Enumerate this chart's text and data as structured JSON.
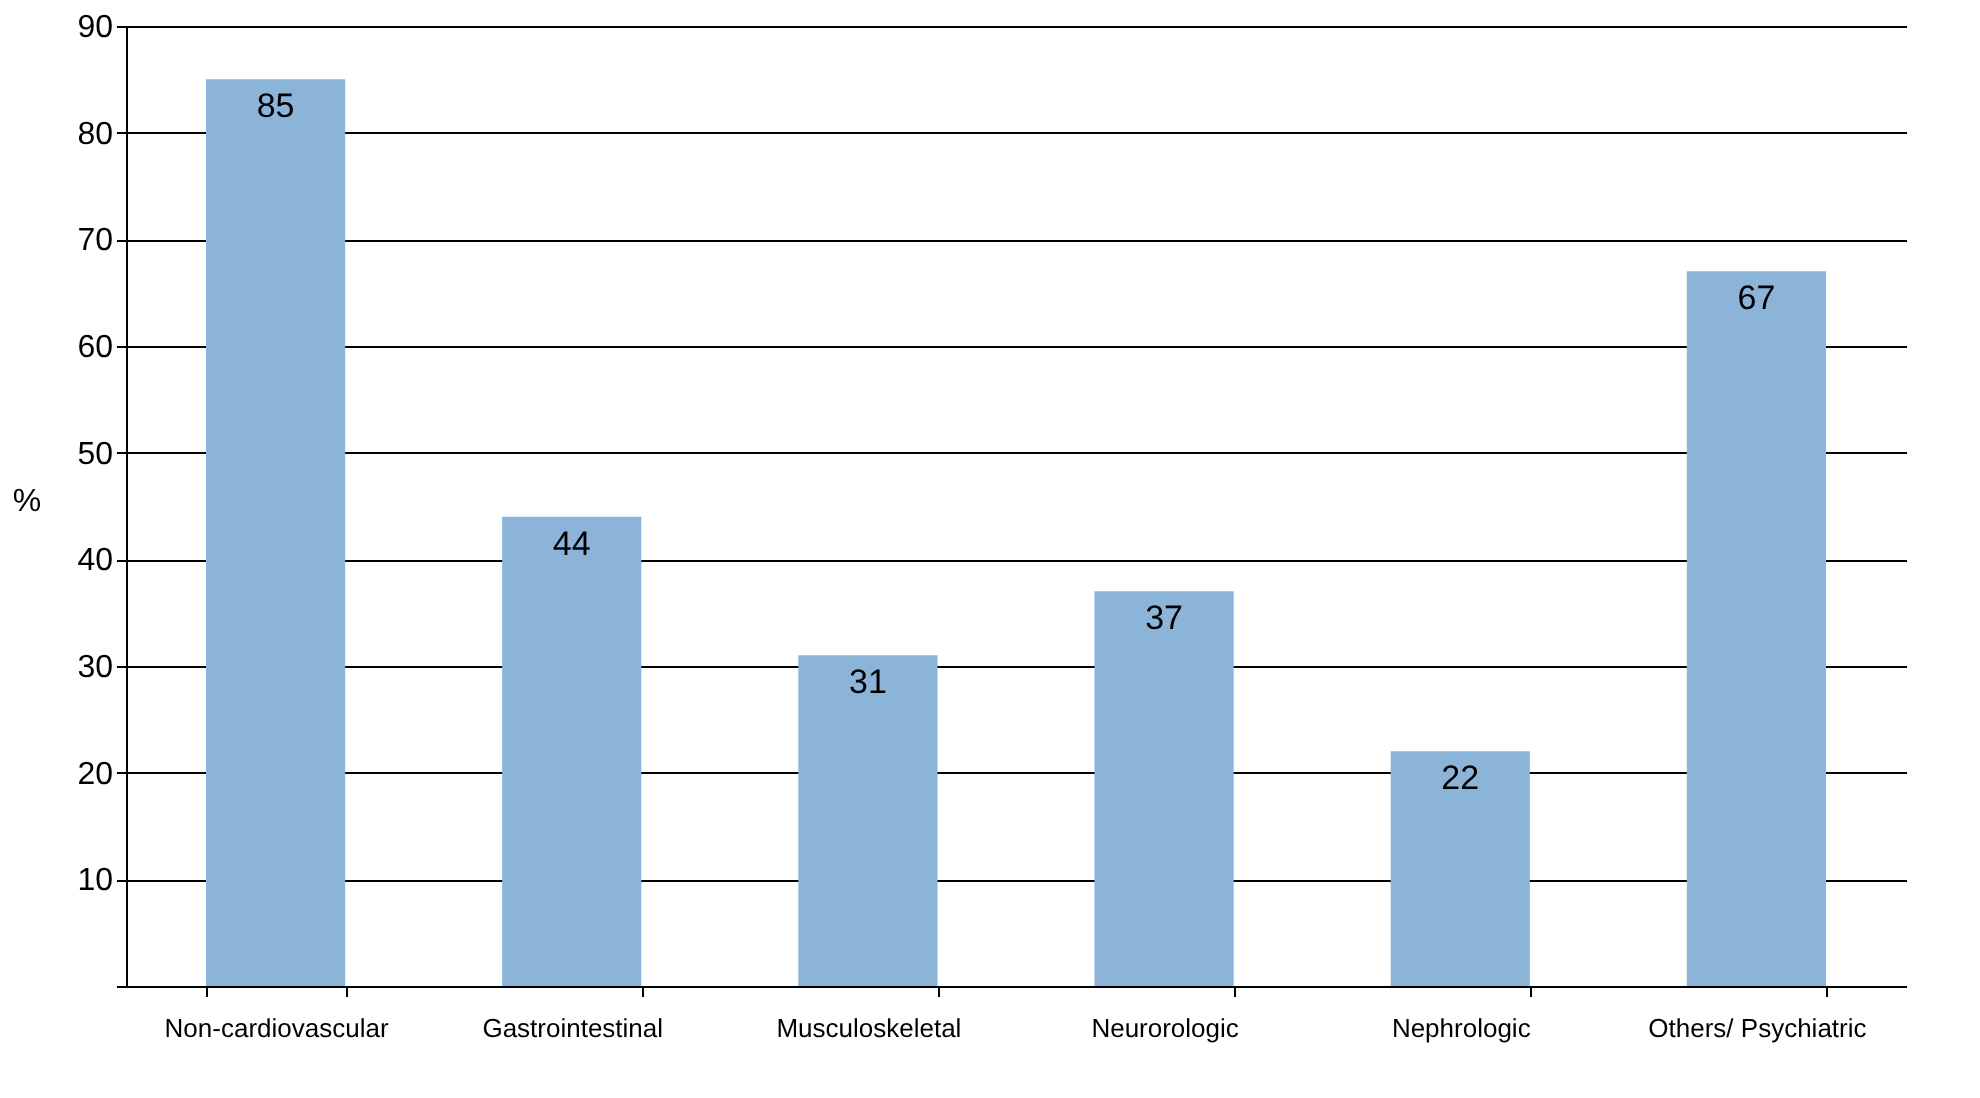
{
  "chart_data": {
    "type": "bar",
    "categories": [
      "Non-cardiovascular",
      "Gastrointestinal",
      "Musculoskeletal",
      "Neurorologic",
      "Nephrologic",
      "Others/ Psychiatric"
    ],
    "values": [
      85,
      44,
      31,
      37,
      22,
      67
    ],
    "color": "#8cb4d8",
    "ylabel": "%",
    "ylim": [
      0,
      90
    ],
    "yticks": [
      {
        "value": 0,
        "label": null
      },
      10,
      20,
      30,
      40,
      50,
      60,
      70,
      80,
      90
    ],
    "grid": "y",
    "data_labels": true
  }
}
